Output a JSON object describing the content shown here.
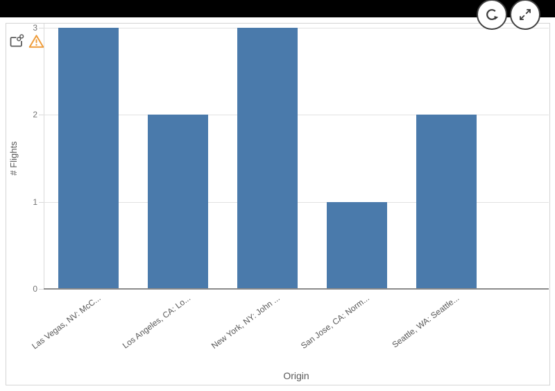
{
  "overlay_toolbar": {
    "refresh_button": {
      "icon": "refresh-icon"
    },
    "expand_button": {
      "icon": "expand-fullscreen-icon"
    }
  },
  "chart_card": {
    "status_icons": {
      "linked": "linked-object-icon",
      "warning": "warning-triangle-icon"
    }
  },
  "chart_data": {
    "type": "bar",
    "title": "",
    "categories": [
      "Las Vegas, NV: McC...",
      "Los Angeles, CA: Lo...",
      "New York, NY: John ...",
      "San Jose, CA: Norm...",
      "Seattle, WA: Seattle..."
    ],
    "values": [
      3,
      2,
      3,
      1,
      2
    ],
    "xlabel": "Origin",
    "ylabel": "# Flights",
    "ylim": [
      0,
      3
    ],
    "yticks": [
      0,
      1,
      2,
      3
    ],
    "grid": true,
    "legend": false,
    "bar_color": "#4a7aab",
    "colors": {
      "gridline": "#e2e2e2",
      "axis_line": "#d9d9d9",
      "baseline": "#8a8a8a",
      "tick_text": "#737373",
      "label_text": "#595959",
      "warning": "#ef9c3a",
      "icon_dark": "#3a3a3a",
      "topbar": "#000000"
    }
  }
}
